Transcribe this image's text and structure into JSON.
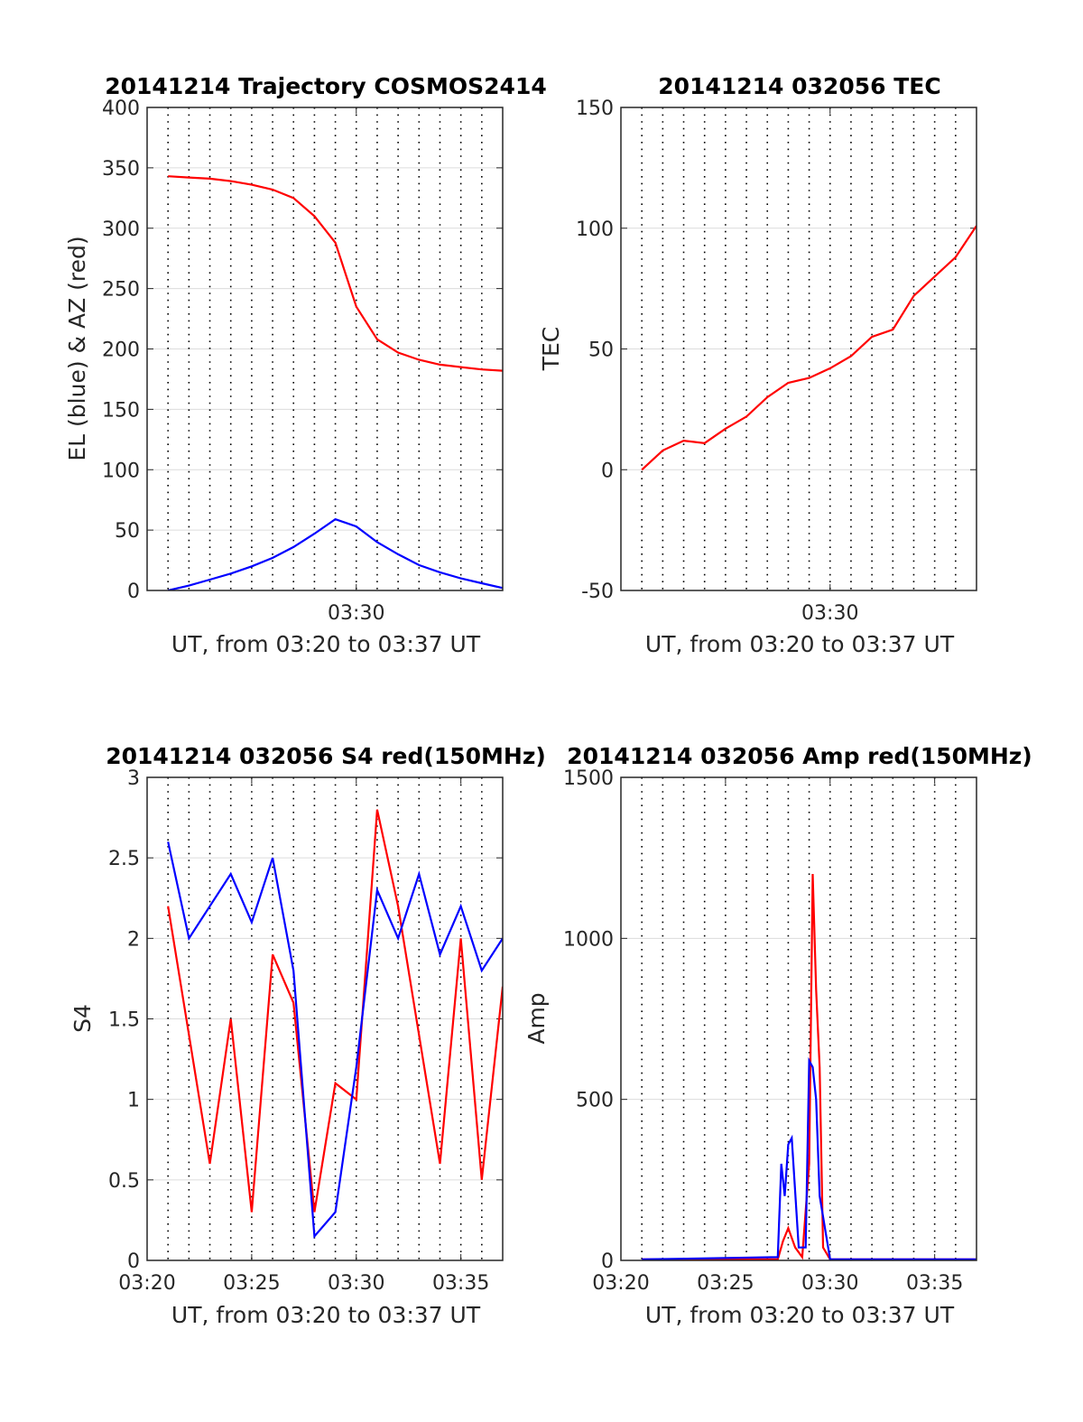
{
  "chart_data": [
    {
      "type": "line",
      "title": "20141214 Trajectory COSMOS2414",
      "xlabel": "UT, from 03:20 to 03:37 UT",
      "ylabel": "EL (blue) & AZ (red)",
      "ylim": [
        0,
        400
      ],
      "yticks": [
        "0",
        "50",
        "100",
        "150",
        "200",
        "250",
        "300",
        "350",
        "400"
      ],
      "xlim": [
        "03:20",
        "03:37"
      ],
      "xticks": [
        {
          "t": "03:30",
          "label": "03:30"
        }
      ],
      "grid": "minute dotted vertical, horizontal at y ticks",
      "series": [
        {
          "name": "AZ",
          "color": "#ff0000",
          "x": [
            "03:21",
            "03:22",
            "03:23",
            "03:24",
            "03:25",
            "03:26",
            "03:27",
            "03:28",
            "03:29",
            "03:30",
            "03:31",
            "03:32",
            "03:33",
            "03:34",
            "03:35",
            "03:36",
            "03:37"
          ],
          "y": [
            343,
            342,
            341,
            339,
            336,
            332,
            325,
            310,
            288,
            235,
            208,
            197,
            191,
            187,
            185,
            183,
            182
          ]
        },
        {
          "name": "EL",
          "color": "#0000ff",
          "x": [
            "03:21",
            "03:22",
            "03:23",
            "03:24",
            "03:25",
            "03:26",
            "03:27",
            "03:28",
            "03:29",
            "03:30",
            "03:31",
            "03:32",
            "03:33",
            "03:34",
            "03:35",
            "03:36",
            "03:37"
          ],
          "y": [
            0,
            4,
            9,
            14,
            20,
            27,
            36,
            47,
            59,
            53,
            40,
            30,
            21,
            15,
            10,
            6,
            2
          ]
        }
      ]
    },
    {
      "type": "line",
      "title": "20141214 032056 TEC",
      "xlabel": "UT, from 03:20 to 03:37 UT",
      "ylabel": "TEC",
      "ylim": [
        -50,
        150
      ],
      "yticks": [
        "-50",
        "0",
        "50",
        "100",
        "150"
      ],
      "xlim": [
        "03:20",
        "03:37"
      ],
      "xticks": [
        {
          "t": "03:30",
          "label": "03:30"
        }
      ],
      "grid": "minute dotted vertical, horizontal at y ticks",
      "series": [
        {
          "name": "TEC",
          "color": "#ff0000",
          "x": [
            "03:21",
            "03:22",
            "03:23",
            "03:24",
            "03:25",
            "03:26",
            "03:27",
            "03:28",
            "03:29",
            "03:30",
            "03:31",
            "03:32",
            "03:33",
            "03:34",
            "03:35",
            "03:36",
            "03:37"
          ],
          "y": [
            0,
            8,
            12,
            11,
            17,
            22,
            30,
            36,
            38,
            42,
            47,
            55,
            58,
            72,
            80,
            88,
            101
          ]
        }
      ]
    },
    {
      "type": "line",
      "title": "20141214 032056 S4 red(150MHz)",
      "xlabel": "UT, from 03:20 to 03:37 UT",
      "ylabel": "S4",
      "ylim": [
        0,
        3
      ],
      "yticks": [
        "0",
        "0.5",
        "1",
        "1.5",
        "2",
        "2.5",
        "3"
      ],
      "xlim": [
        "03:20",
        "03:37"
      ],
      "xticks": [
        {
          "t": "03:20",
          "label": "03:20"
        },
        {
          "t": "03:25",
          "label": "03:25"
        },
        {
          "t": "03:30",
          "label": "03:30"
        },
        {
          "t": "03:35",
          "label": "03:35"
        }
      ],
      "grid": "minute dotted vertical, horizontal at y ticks",
      "series": [
        {
          "name": "S4 (red)",
          "color": "#ff0000",
          "x": [
            "03:21",
            "03:22",
            "03:23",
            "03:24",
            "03:25",
            "03:26",
            "03:27",
            "03:28",
            "03:29",
            "03:30",
            "03:31",
            "03:32",
            "03:33",
            "03:34",
            "03:35",
            "03:36",
            "03:37"
          ],
          "y": [
            2.2,
            1.4,
            0.6,
            1.5,
            0.3,
            1.9,
            1.6,
            0.3,
            1.1,
            1.0,
            2.8,
            2.2,
            1.4,
            0.6,
            2.0,
            0.5,
            1.7
          ]
        },
        {
          "name": "S4 (blue)",
          "color": "#0000ff",
          "x": [
            "03:21",
            "03:22",
            "03:23",
            "03:24",
            "03:25",
            "03:26",
            "03:27",
            "03:28",
            "03:29",
            "03:30",
            "03:31",
            "03:32",
            "03:33",
            "03:34",
            "03:35",
            "03:36",
            "03:37"
          ],
          "y": [
            2.6,
            2.0,
            2.2,
            2.4,
            2.1,
            2.5,
            1.8,
            0.15,
            0.3,
            1.2,
            2.3,
            2.0,
            2.4,
            1.9,
            2.2,
            1.8,
            2.0
          ]
        }
      ]
    },
    {
      "type": "line",
      "title": "20141214 032056 Amp red(150MHz)",
      "xlabel": "UT, from 03:20 to 03:37 UT",
      "ylabel": "Amp",
      "ylim": [
        0,
        1500
      ],
      "yticks": [
        "0",
        "500",
        "1000",
        "1500"
      ],
      "xlim": [
        "03:20",
        "03:37"
      ],
      "xticks": [
        {
          "t": "03:20",
          "label": "03:20"
        },
        {
          "t": "03:25",
          "label": "03:25"
        },
        {
          "t": "03:30",
          "label": "03:30"
        },
        {
          "t": "03:35",
          "label": "03:35"
        }
      ],
      "grid": "minute dotted vertical, horizontal at y ticks",
      "series": [
        {
          "name": "Amp (red)",
          "color": "#ff0000",
          "x": [
            "03:21",
            "03:27:30",
            "03:27:45",
            "03:28",
            "03:28:20",
            "03:28:40",
            "03:29",
            "03:29:10",
            "03:29:20",
            "03:29:30",
            "03:29:40",
            "03:30",
            "03:37"
          ],
          "y": [
            3,
            3,
            60,
            100,
            40,
            10,
            300,
            1200,
            840,
            600,
            40,
            3,
            3
          ]
        },
        {
          "name": "Amp (blue)",
          "color": "#0000ff",
          "x": [
            "03:21",
            "03:27:30",
            "03:27:40",
            "03:27:50",
            "03:28",
            "03:28:10",
            "03:28:30",
            "03:28:50",
            "03:29",
            "03:29:10",
            "03:29:20",
            "03:29:30",
            "03:30",
            "03:37"
          ],
          "y": [
            3,
            10,
            300,
            200,
            360,
            380,
            40,
            40,
            620,
            600,
            500,
            200,
            3,
            3
          ]
        }
      ]
    }
  ]
}
